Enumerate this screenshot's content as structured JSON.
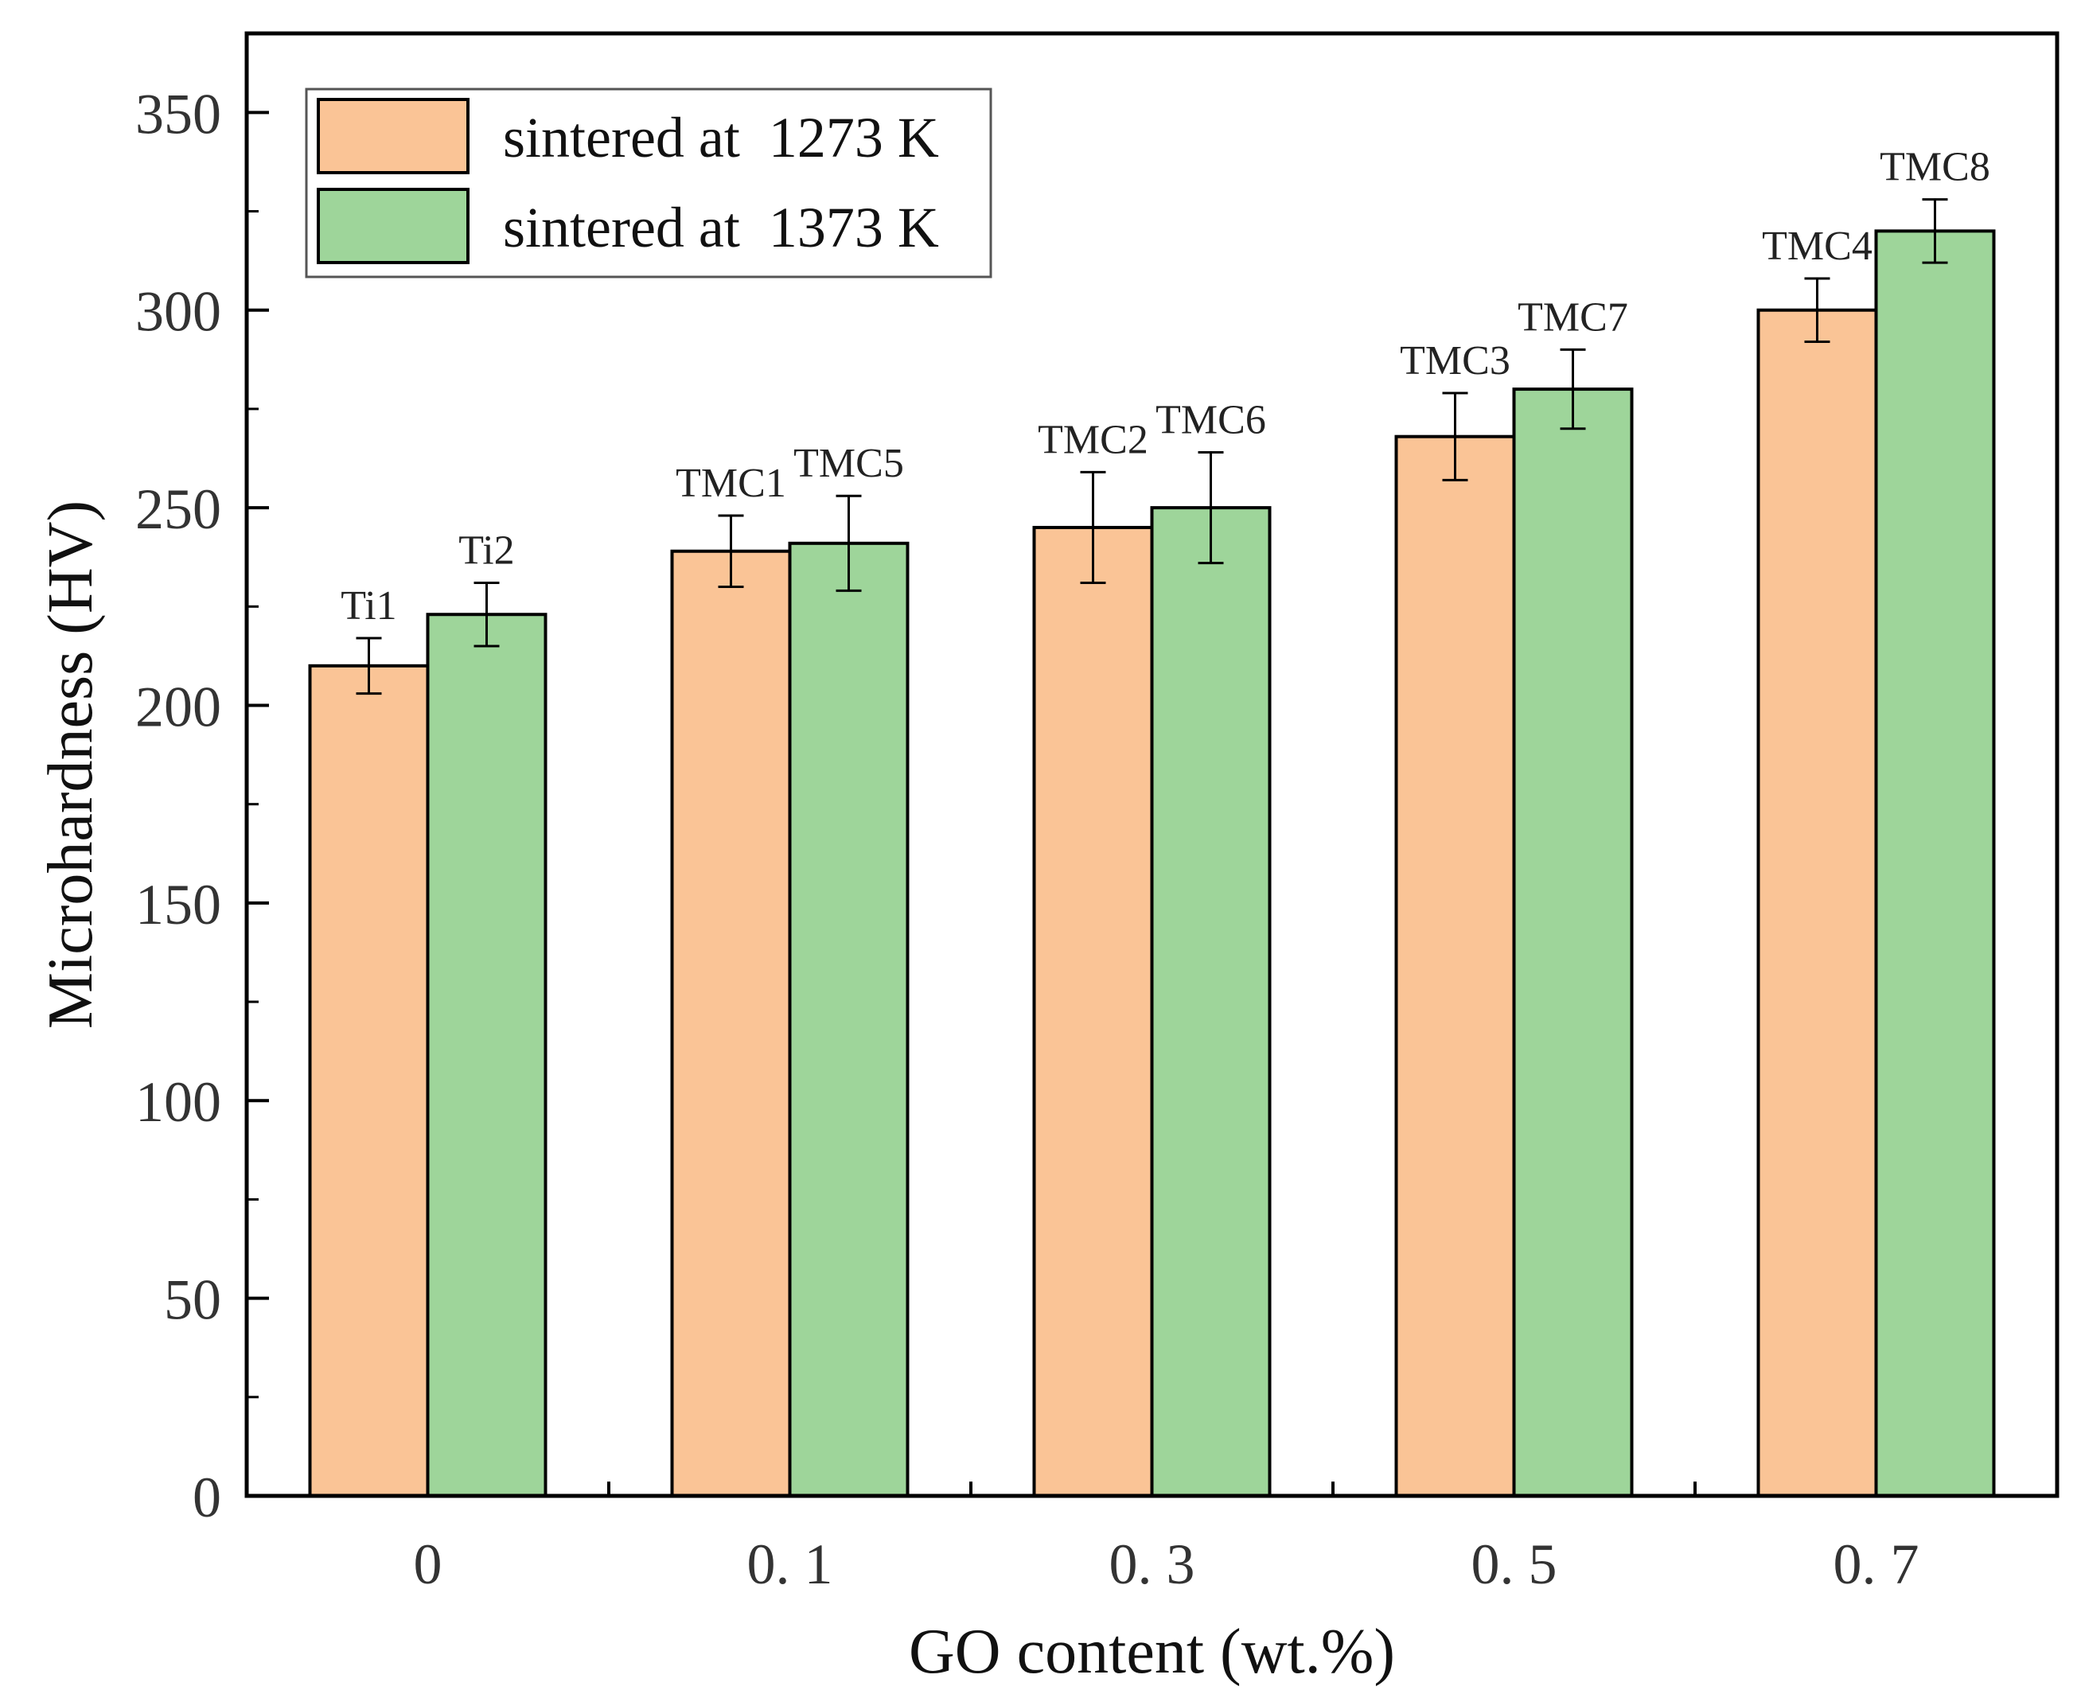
{
  "chart_data": {
    "type": "bar",
    "title": "",
    "xlabel": "GO content (wt.%)",
    "ylabel": "Microhardness (HV)",
    "categories": [
      "0",
      "0. 1",
      "0. 3",
      "0. 5",
      "0. 7"
    ],
    "ylim": [
      0,
      370
    ],
    "yticks": [
      0,
      50,
      100,
      150,
      200,
      250,
      300,
      350
    ],
    "series": [
      {
        "name": "sintered at  1273 K",
        "color": "#FAC496",
        "values": [
          210,
          239,
          245,
          268,
          300
        ],
        "errors": [
          7,
          9,
          14,
          11,
          8
        ],
        "labels": [
          "Ti1",
          "TMC1",
          "TMC2",
          "TMC3",
          "TMC4"
        ]
      },
      {
        "name": "sintered at  1373 K",
        "color": "#9ED59A",
        "values": [
          223,
          241,
          250,
          280,
          320
        ],
        "errors": [
          8,
          12,
          14,
          10,
          8
        ],
        "labels": [
          "Ti2",
          "TMC5",
          "TMC6",
          "TMC7",
          "TMC8"
        ]
      }
    ],
    "legend": "top-left",
    "grid": false
  }
}
